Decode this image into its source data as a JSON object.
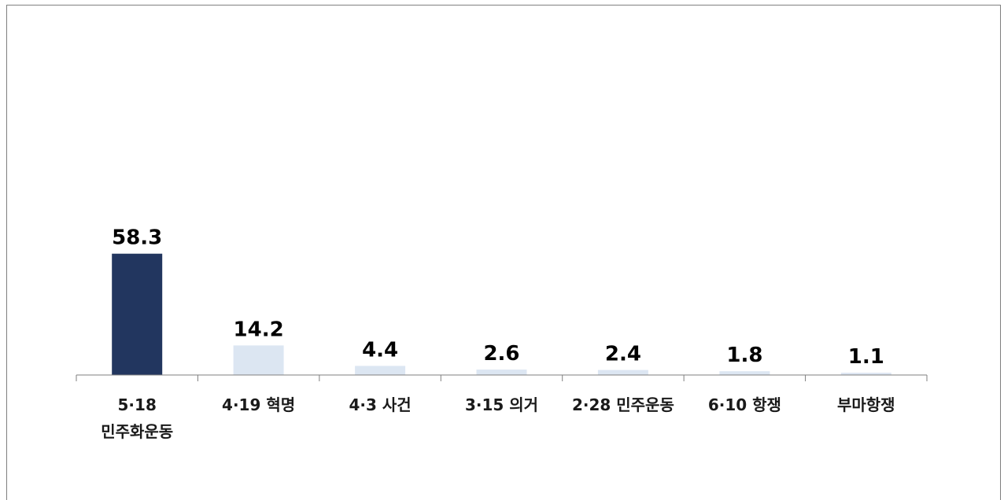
{
  "chart_data": {
    "type": "bar",
    "categories": [
      [
        "5·18",
        "민주화운동"
      ],
      [
        "4·19 혁명"
      ],
      [
        "4·3 사건"
      ],
      [
        "3·15 의거"
      ],
      [
        "2·28 민주운동"
      ],
      [
        "6·10 항쟁"
      ],
      [
        "부마항쟁"
      ]
    ],
    "values": [
      58.3,
      14.2,
      4.4,
      2.6,
      2.4,
      1.8,
      1.1
    ],
    "value_labels": [
      "58.3",
      "14.2",
      "4.4",
      "2.6",
      "2.4",
      "1.8",
      "1.1"
    ],
    "ylim": [
      0,
      100
    ],
    "grid": false,
    "legend": "none",
    "colors": {
      "highlight": "#22365f",
      "default": "#dce6f2",
      "axis": "#7f7f7f"
    }
  }
}
